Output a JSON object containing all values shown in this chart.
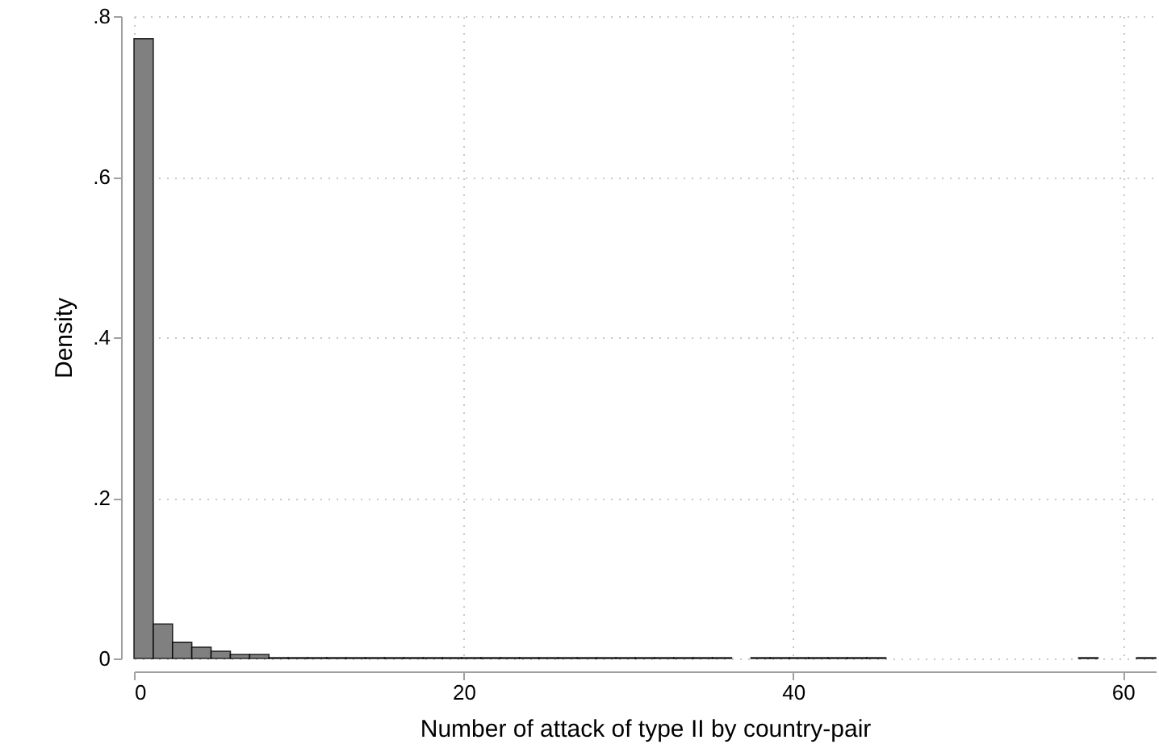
{
  "chart_data": {
    "type": "histogram",
    "xlabel": "Number of attack of type II by country-pair",
    "ylabel": "Density",
    "bins": [
      0,
      1.17,
      2.34,
      3.509,
      4.679,
      5.849,
      7.019,
      8.189,
      9.358,
      10.528,
      11.698,
      12.868,
      14.038,
      15.208,
      16.377,
      17.547,
      18.717,
      19.887,
      21.057,
      22.226,
      23.396,
      24.566,
      25.736,
      26.906,
      28.075,
      29.245,
      30.415,
      31.585,
      32.755,
      33.925,
      35.094,
      36.264,
      37.434,
      38.604,
      39.774,
      40.943,
      42.113,
      43.283,
      44.453,
      45.623,
      46.792,
      47.962,
      49.132,
      50.302,
      51.472,
      52.642,
      53.811,
      54.981,
      56.151,
      57.321,
      58.491,
      59.66,
      60.83,
      62
    ],
    "values": [
      0.772,
      0.043,
      0.02,
      0.014,
      0.009,
      0.005,
      0.005,
      0.001,
      0.001,
      0.001,
      0.001,
      0.001,
      0.001,
      0.001,
      0.001,
      0.001,
      0.001,
      0.001,
      0.001,
      0.001,
      0.001,
      0.001,
      0.001,
      0.001,
      0.001,
      0.001,
      0.001,
      0.001,
      0.001,
      0.001,
      0.001,
      0,
      0.001,
      0.001,
      0.001,
      0.001,
      0.001,
      0.001,
      0.001,
      0,
      0,
      0,
      0,
      0,
      0,
      0,
      0,
      0,
      0,
      0.001,
      0,
      0,
      0.001
    ],
    "color": "#808080",
    "xlim": [
      0,
      62
    ],
    "xticks": [
      0,
      20,
      40,
      60
    ],
    "ylim": [
      0,
      0.8
    ],
    "yticks": [
      {
        "value": 0,
        "label": "0"
      },
      {
        "value": 0.2,
        "label": ".2"
      },
      {
        "value": 0.4,
        "label": ".4"
      },
      {
        "value": 0.6,
        "label": ".6"
      },
      {
        "value": 0.8,
        "label": ".8"
      }
    ],
    "grid": true
  }
}
